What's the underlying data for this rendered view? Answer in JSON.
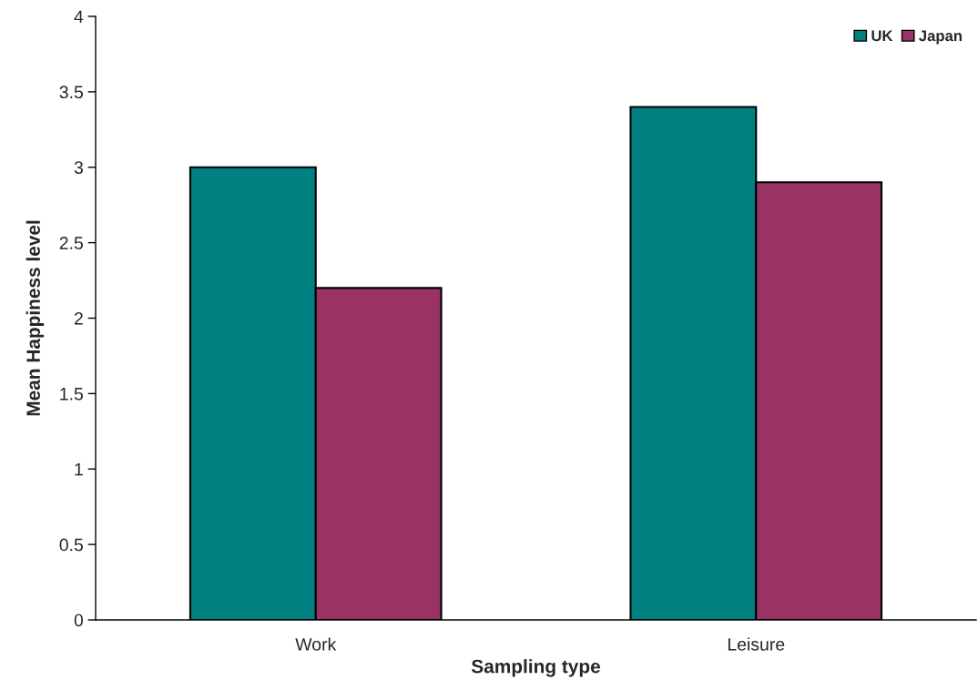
{
  "chart_data": {
    "type": "bar",
    "xlabel": "Sampling type",
    "ylabel": "Mean Happiness level",
    "categories": [
      "Work",
      "Leisure"
    ],
    "series": [
      {
        "name": "UK",
        "color": "#008080",
        "values": [
          3.0,
          3.4
        ]
      },
      {
        "name": "Japan",
        "color": "#993366",
        "values": [
          2.2,
          2.9
        ]
      }
    ],
    "ylim": [
      0,
      4
    ],
    "yticks": [
      0,
      0.5,
      1,
      1.5,
      2,
      2.5,
      3,
      3.5,
      4
    ],
    "grid": false,
    "legend": "top right"
  }
}
